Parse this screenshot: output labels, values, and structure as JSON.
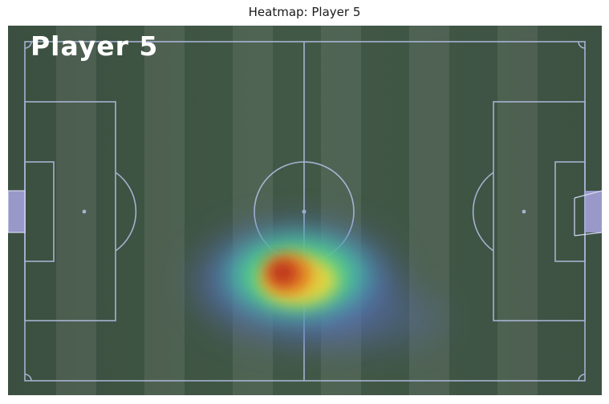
{
  "figure": {
    "title": "Heatmap: Player 5"
  },
  "image": {
    "player_label": "Player 5",
    "colors": {
      "pitch": "#3f5442",
      "lines": "#b8c2ea",
      "goal": "#a9a6e0",
      "heat_low": "#5b6fc4",
      "heat_mid": "#58e07a",
      "heat_high": "#f2d63a",
      "heat_peak": "#b5281a",
      "label": "#ffffff"
    }
  }
}
